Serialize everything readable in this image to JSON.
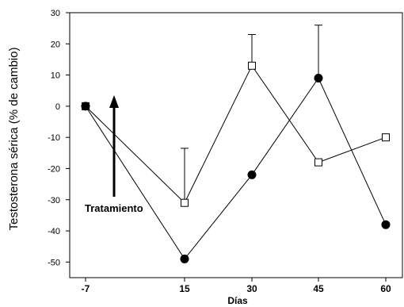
{
  "chart_data": {
    "type": "line",
    "xlabel": "Días",
    "ylabel": "Testosterona sérica  (% de cambio)",
    "ylim": [
      -55,
      30
    ],
    "yticks": [
      30,
      20,
      10,
      0,
      -10,
      -20,
      -30,
      -40,
      -50
    ],
    "categories": [
      "-7",
      "15",
      "30",
      "45",
      "60"
    ],
    "grid": false,
    "series": [
      {
        "marker": "open-square",
        "values": [
          0,
          -31,
          13,
          -18,
          -10
        ],
        "error_upper": [
          null,
          17.5,
          10,
          null,
          null
        ]
      },
      {
        "marker": "filled-circle",
        "values": [
          0,
          -49,
          -22,
          9,
          -38
        ],
        "error_upper": [
          null,
          null,
          null,
          17,
          null
        ]
      }
    ],
    "annotations": [
      {
        "text": "Tratamiento",
        "points_to": "upward arrow at start of treatment"
      }
    ]
  }
}
